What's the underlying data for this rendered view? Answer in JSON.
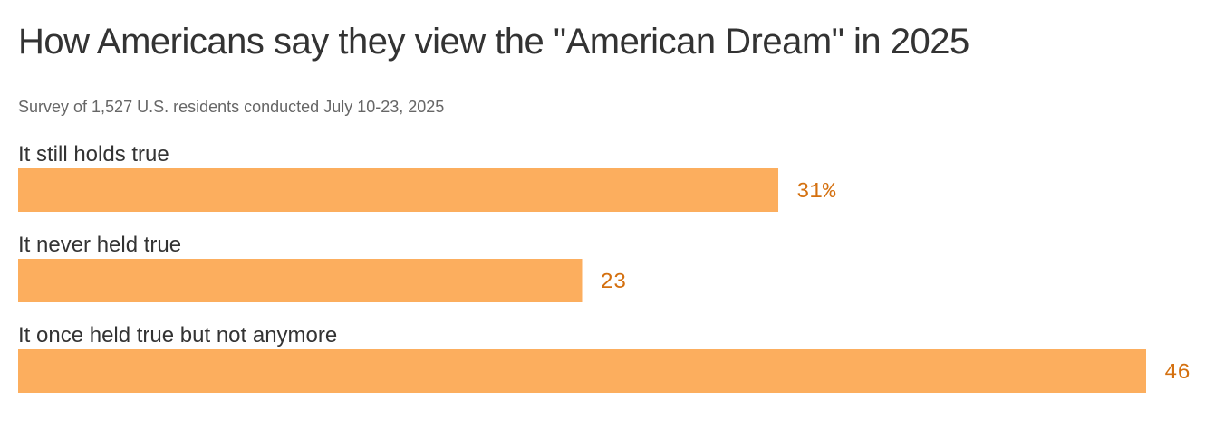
{
  "chart_data": {
    "type": "bar",
    "orientation": "horizontal",
    "title": "How Americans say they view the \"American Dream\" in 2025",
    "subtitle": "Survey of 1,527 U.S. residents conducted July 10-23, 2025",
    "categories": [
      "It still holds true",
      "It never held true",
      "It once held true but not anymore"
    ],
    "values": [
      31,
      23,
      46
    ],
    "value_labels": [
      "31%",
      "23",
      "46"
    ],
    "unit": "%",
    "xlim": [
      0,
      46
    ],
    "bar_color": "#fcae5e",
    "label_color": "#d4700f",
    "grid": false,
    "legend": "none"
  }
}
